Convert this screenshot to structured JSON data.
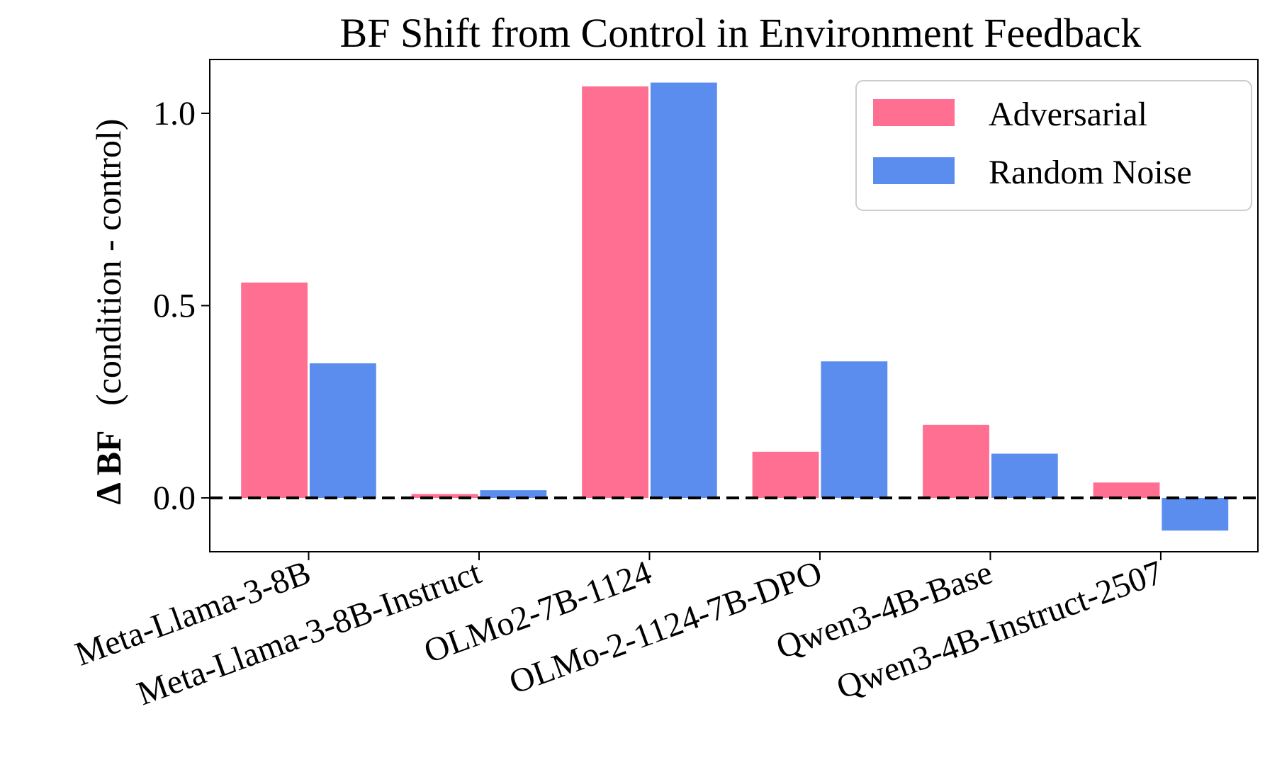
{
  "chart_data": {
    "type": "bar",
    "title": "BF Shift from Control in Environment Feedback",
    "ylabel_symbol": "Δ BF",
    "ylabel_rest": "(condition - control)",
    "xlabel": "",
    "categories": [
      "Meta-Llama-3-8B",
      "Meta-Llama-3-8B-Instruct",
      "OLMo2-7B-1124",
      "OLMo-2-1124-7B-DPO",
      "Qwen3-4B-Base",
      "Qwen3-4B-Instruct-2507"
    ],
    "series": [
      {
        "name": "Adversarial",
        "color": "#ff6f91",
        "values": [
          0.56,
          0.01,
          1.07,
          0.12,
          0.19,
          0.04
        ]
      },
      {
        "name": "Random Noise",
        "color": "#5b8dee",
        "values": [
          0.35,
          0.02,
          1.08,
          0.355,
          0.115,
          -0.085
        ]
      }
    ],
    "ylim": [
      -0.14,
      1.14
    ],
    "yticks": [
      0.0,
      0.5,
      1.0
    ],
    "ytick_labels": [
      "0.0",
      "0.5",
      "1.0"
    ],
    "reference_line": {
      "y": 0.0,
      "style": "dashed",
      "color": "#000000"
    },
    "legend": {
      "placement": "top-right"
    },
    "grid": false
  }
}
